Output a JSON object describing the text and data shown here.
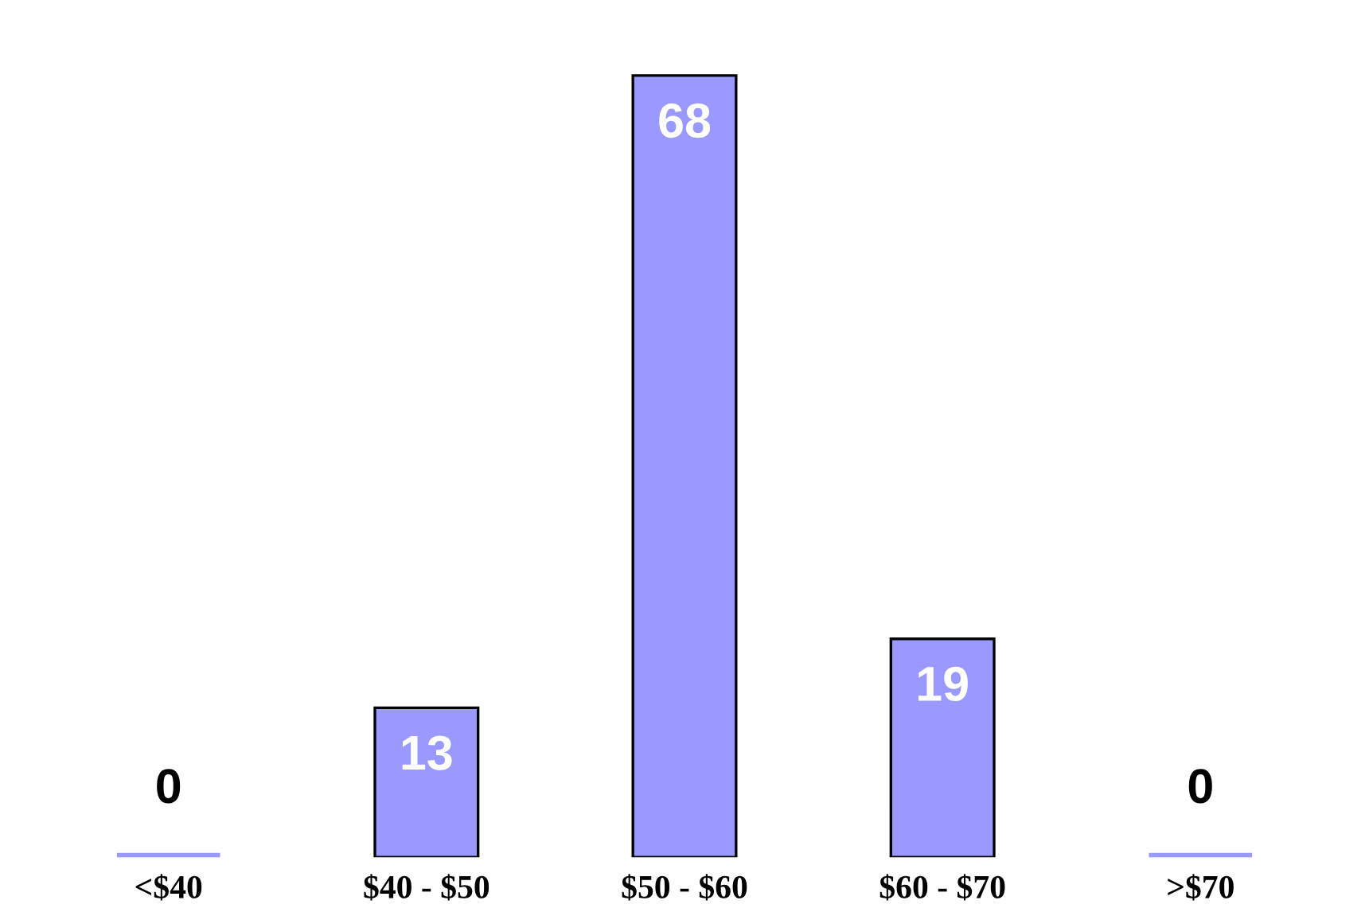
{
  "chart_data": {
    "type": "bar",
    "categories": [
      "<$40",
      "$40 - $50",
      "$50 - $60",
      "$60 - $70",
      ">$70"
    ],
    "values": [
      0,
      13,
      68,
      19,
      0
    ],
    "color": "#9999ff",
    "data_labels": true,
    "grid": false,
    "legend": false
  }
}
